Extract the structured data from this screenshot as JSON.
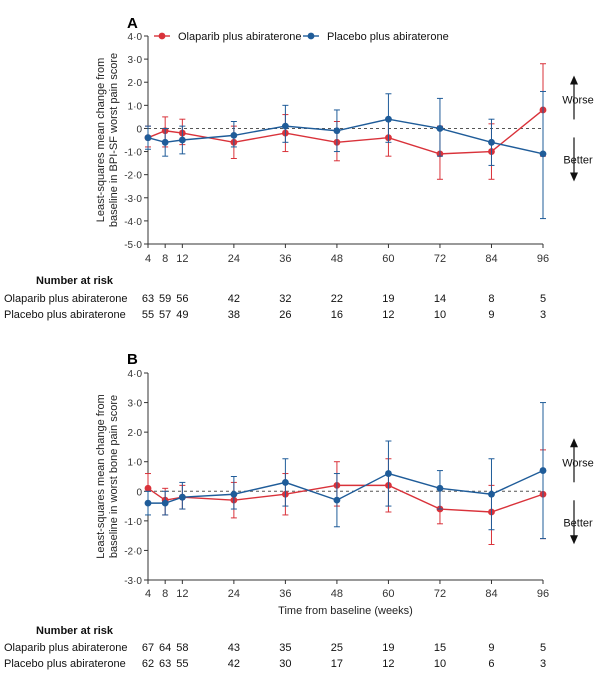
{
  "legend": [
    {
      "label": "Olaparib plus abiraterone",
      "color": "#d9323a"
    },
    {
      "label": "Placebo plus abiraterone",
      "color": "#1f5c99"
    }
  ],
  "chart_data": [
    {
      "type": "line",
      "panel_label": "A",
      "ylabel": "Least-squares mean change from baseline in BPI-SF worst pain score",
      "xlabel": "",
      "x": [
        4,
        8,
        12,
        24,
        36,
        48,
        60,
        72,
        84,
        96
      ],
      "xticks": [
        "4",
        "8",
        "12",
        "24",
        "36",
        "48",
        "60",
        "72",
        "84",
        "96"
      ],
      "ylim": [
        -5,
        4
      ],
      "yticks": [
        "-5·0",
        "-4·0",
        "-3·0",
        "-2·0",
        "-1·0",
        "0",
        "1·0",
        "2·0",
        "3·0",
        "4·0"
      ],
      "reference_line": 0,
      "series": [
        {
          "name": "Olaparib plus abiraterone",
          "color": "#d9323a",
          "values": [
            -0.4,
            -0.1,
            -0.2,
            -0.6,
            -0.2,
            -0.6,
            -0.4,
            -1.1,
            -1.0,
            0.8
          ],
          "ci_low": [
            -0.8,
            -0.8,
            -0.7,
            -1.3,
            -1.0,
            -1.4,
            -1.2,
            -2.2,
            -2.2,
            -1.2
          ],
          "ci_high": [
            0.1,
            0.5,
            0.4,
            0.1,
            0.6,
            0.3,
            0.4,
            0.1,
            0.2,
            2.8
          ]
        },
        {
          "name": "Placebo plus abiraterone",
          "color": "#1f5c99",
          "values": [
            -0.4,
            -0.6,
            -0.5,
            -0.3,
            0.1,
            -0.1,
            0.4,
            0.0,
            -0.6,
            -1.1
          ],
          "ci_low": [
            -0.9,
            -1.2,
            -1.1,
            -0.8,
            -0.6,
            -1.0,
            -0.6,
            -1.2,
            -1.6,
            -3.9
          ],
          "ci_high": [
            0.1,
            0.0,
            0.1,
            0.3,
            1.0,
            0.8,
            1.5,
            1.3,
            0.4,
            1.6
          ]
        }
      ],
      "annotations": [
        "Worse",
        "Better"
      ],
      "risk_title": "Number at risk",
      "risk": [
        {
          "label": "Olaparib plus abiraterone",
          "values": [
            "63",
            "59",
            "56",
            "42",
            "32",
            "22",
            "19",
            "14",
            "8",
            "5"
          ]
        },
        {
          "label": "Placebo plus abiraterone",
          "values": [
            "55",
            "57",
            "49",
            "38",
            "26",
            "16",
            "12",
            "10",
            "9",
            "3"
          ]
        }
      ]
    },
    {
      "type": "line",
      "panel_label": "B",
      "ylabel": "Least-squares mean change from baseline in worst bone pain score",
      "xlabel": "Time from baseline (weeks)",
      "x": [
        4,
        8,
        12,
        24,
        36,
        48,
        60,
        72,
        84,
        96
      ],
      "xticks": [
        "4",
        "8",
        "12",
        "24",
        "36",
        "48",
        "60",
        "72",
        "84",
        "96"
      ],
      "ylim": [
        -3,
        4
      ],
      "yticks": [
        "-3·0",
        "-2·0",
        "-1·0",
        "0",
        "1·0",
        "2·0",
        "3·0",
        "4·0"
      ],
      "reference_line": 0,
      "series": [
        {
          "name": "Olaparib plus abiraterone",
          "color": "#d9323a",
          "values": [
            0.1,
            -0.3,
            -0.2,
            -0.3,
            -0.1,
            0.2,
            0.2,
            -0.6,
            -0.7,
            -0.1
          ],
          "ci_low": [
            -0.4,
            -0.8,
            -0.6,
            -0.9,
            -0.8,
            -0.5,
            -0.7,
            -1.1,
            -1.8,
            -1.6
          ],
          "ci_high": [
            0.6,
            0.1,
            0.2,
            0.3,
            0.6,
            1.0,
            1.1,
            0.1,
            0.2,
            1.4
          ]
        },
        {
          "name": "Placebo plus abiraterone",
          "color": "#1f5c99",
          "values": [
            -0.4,
            -0.4,
            -0.2,
            -0.1,
            0.3,
            -0.3,
            0.6,
            0.1,
            -0.1,
            0.7
          ],
          "ci_low": [
            -0.8,
            -0.8,
            -0.6,
            -0.6,
            -0.5,
            -1.2,
            -0.5,
            -0.6,
            -1.3,
            -1.6
          ],
          "ci_high": [
            0.0,
            0.0,
            0.3,
            0.5,
            1.1,
            0.6,
            1.7,
            0.7,
            1.1,
            3.0
          ]
        }
      ],
      "annotations": [
        "Worse",
        "Better"
      ],
      "risk_title": "Number at risk",
      "risk": [
        {
          "label": "Olaparib plus abiraterone",
          "values": [
            "67",
            "64",
            "58",
            "43",
            "35",
            "25",
            "19",
            "15",
            "9",
            "5"
          ]
        },
        {
          "label": "Placebo plus abiraterone",
          "values": [
            "62",
            "63",
            "55",
            "42",
            "30",
            "17",
            "12",
            "10",
            "6",
            "3"
          ]
        }
      ]
    }
  ]
}
